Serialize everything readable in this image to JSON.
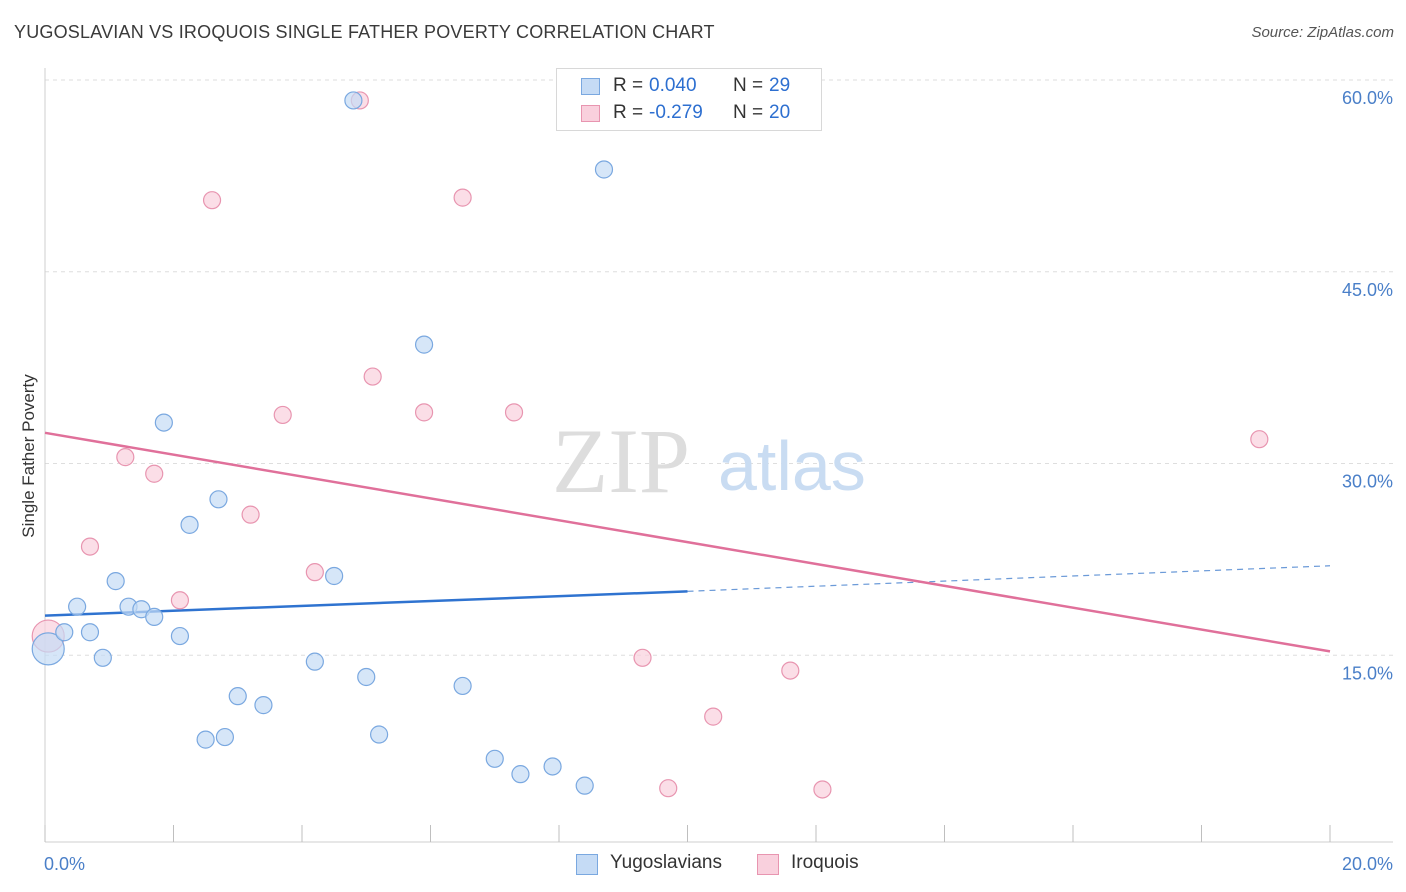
{
  "header": {
    "title": "YUGOSLAVIAN VS IROQUOIS SINGLE FATHER POVERTY CORRELATION CHART",
    "source": "Source: ZipAtlas.com"
  },
  "watermark": {
    "zip": "ZIP",
    "atlas": "atlas"
  },
  "legend": {
    "r_label": "R =",
    "n_label": "N =",
    "rows": [
      {
        "r": "0.040",
        "n": "29",
        "color": "#a9c8f0",
        "border": "#7aa8e0"
      },
      {
        "r": "-0.279",
        "n": "20",
        "color": "#f8c4d4",
        "border": "#e895b0"
      }
    ]
  },
  "bottom_legend": [
    "Yugoslavians",
    "Iroquois"
  ],
  "chart_data": {
    "type": "scatter",
    "title": "YUGOSLAVIAN VS IROQUOIS SINGLE FATHER POVERTY CORRELATION CHART",
    "xlabel": "",
    "ylabel": "Single Father Poverty",
    "xlim": [
      0,
      20
    ],
    "ylim": [
      0,
      60
    ],
    "x_tick_labels": [
      "0.0%",
      "20.0%"
    ],
    "y_ticks": [
      15,
      30,
      45,
      60
    ],
    "y_tick_labels": [
      "15.0%",
      "30.0%",
      "45.0%",
      "60.0%"
    ],
    "series": [
      {
        "name": "Yugoslavians",
        "color": "#7aa8e0",
        "fill": "#c5dbf5",
        "points": [
          [
            0.05,
            15.5
          ],
          [
            0.3,
            16.8
          ],
          [
            0.5,
            18.8
          ],
          [
            0.7,
            16.8
          ],
          [
            0.9,
            14.8
          ],
          [
            1.1,
            20.8
          ],
          [
            1.3,
            18.8
          ],
          [
            1.5,
            18.6
          ],
          [
            1.7,
            18.0
          ],
          [
            1.85,
            33.2
          ],
          [
            2.1,
            16.5
          ],
          [
            2.25,
            25.2
          ],
          [
            2.5,
            8.4
          ],
          [
            2.7,
            27.2
          ],
          [
            2.8,
            8.6
          ],
          [
            3.0,
            11.8
          ],
          [
            3.4,
            11.1
          ],
          [
            4.2,
            14.5
          ],
          [
            4.5,
            21.2
          ],
          [
            4.8,
            58.4
          ],
          [
            5.0,
            13.3
          ],
          [
            5.2,
            8.8
          ],
          [
            5.9,
            39.3
          ],
          [
            6.5,
            12.6
          ],
          [
            7.0,
            6.9
          ],
          [
            7.4,
            5.7
          ],
          [
            7.9,
            6.3
          ],
          [
            8.4,
            4.8
          ],
          [
            8.7,
            53.0
          ]
        ]
      },
      {
        "name": "Iroquois",
        "color": "#e895b0",
        "fill": "#f9d0dd",
        "points": [
          [
            0.05,
            16.5
          ],
          [
            0.7,
            23.5
          ],
          [
            1.25,
            30.5
          ],
          [
            1.7,
            29.2
          ],
          [
            2.1,
            19.3
          ],
          [
            2.6,
            50.6
          ],
          [
            3.2,
            26.0
          ],
          [
            3.7,
            33.8
          ],
          [
            4.2,
            21.5
          ],
          [
            4.9,
            58.4
          ],
          [
            5.1,
            36.8
          ],
          [
            5.9,
            34.0
          ],
          [
            6.5,
            50.8
          ],
          [
            7.3,
            34.0
          ],
          [
            9.3,
            14.8
          ],
          [
            9.7,
            4.6
          ],
          [
            10.4,
            10.2
          ],
          [
            11.6,
            13.8
          ],
          [
            12.1,
            4.5
          ],
          [
            18.9,
            31.9
          ]
        ]
      }
    ],
    "trend_lines": [
      {
        "series": "Yugoslavians",
        "x0": 0,
        "y0": 18.1,
        "x1": 10,
        "y1": 20.0,
        "dashed_to_x": 20,
        "dashed_to_y": 22.0
      },
      {
        "series": "Iroquois",
        "x0": 0,
        "y0": 32.4,
        "x1": 20,
        "y1": 15.3
      }
    ]
  }
}
